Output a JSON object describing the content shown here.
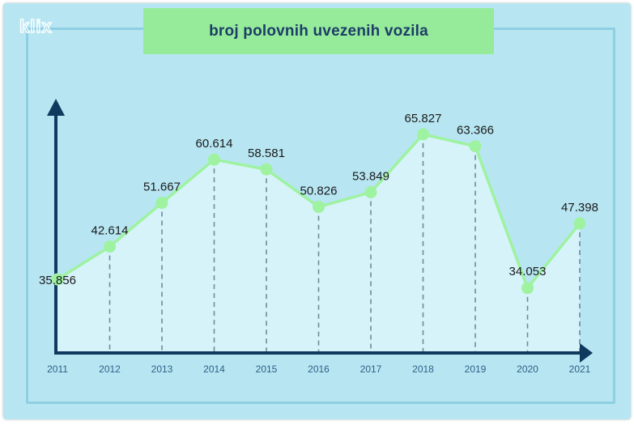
{
  "logo": "klix",
  "colors": {
    "background": "#b7e6f2",
    "title_box": "#96eb9b",
    "title_text": "#1d3d68",
    "axis": "#10395e",
    "line": "#9ef2a0",
    "area_fill": "#dcf5fb",
    "dash": "#6f8a95"
  },
  "chart_data": {
    "type": "line",
    "title": "broj polovnih uvezenih vozila",
    "xlabel": "",
    "ylabel": "",
    "x": [
      "2011",
      "2012",
      "2013",
      "2014",
      "2015",
      "2016",
      "2017",
      "2018",
      "2019",
      "2020",
      "2021"
    ],
    "series": [
      {
        "values": [
          35856,
          42614,
          51667,
          60614,
          58581,
          50826,
          53849,
          65827,
          63366,
          34053,
          47398
        ],
        "labels": [
          "35.856",
          "42.614",
          "51.667",
          "60.614",
          "58.581",
          "50.826",
          "53.849",
          "65.827",
          "63.366",
          "34.053",
          "47.398"
        ]
      }
    ],
    "grid": false,
    "area_filled": true
  }
}
